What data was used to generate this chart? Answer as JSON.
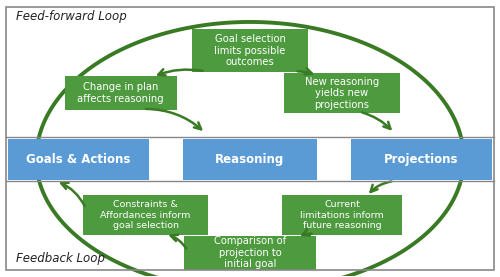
{
  "bg_color": "#ffffff",
  "green": "#4e9a3f",
  "blue": "#5b9bd5",
  "arrow_color": "#3a7a25",
  "border_color": "#888888",
  "white_text": "#ffffff",
  "dark_text": "#222222",
  "feed_forward_label": "Feed-forward Loop",
  "feedback_label": "Feedback Loop",
  "goal_selection": "Goal selection\nlimits possible\noutcomes",
  "change_in_plan": "Change in plan\naffects reasoning",
  "new_reasoning": "New reasoning\nyields new\nprojections",
  "constraints": "Constraints &\nAffordances inform\ngoal selection",
  "current_lim": "Current\nlimitations inform\nfuture reasoning",
  "comparison": "Comparison of\nprojection to\ninitial goal",
  "goals": "Goals & Actions",
  "reasoning": "Reasoning",
  "projections": "Projections",
  "fig_w": 5.0,
  "fig_h": 2.77,
  "dpi": 100
}
